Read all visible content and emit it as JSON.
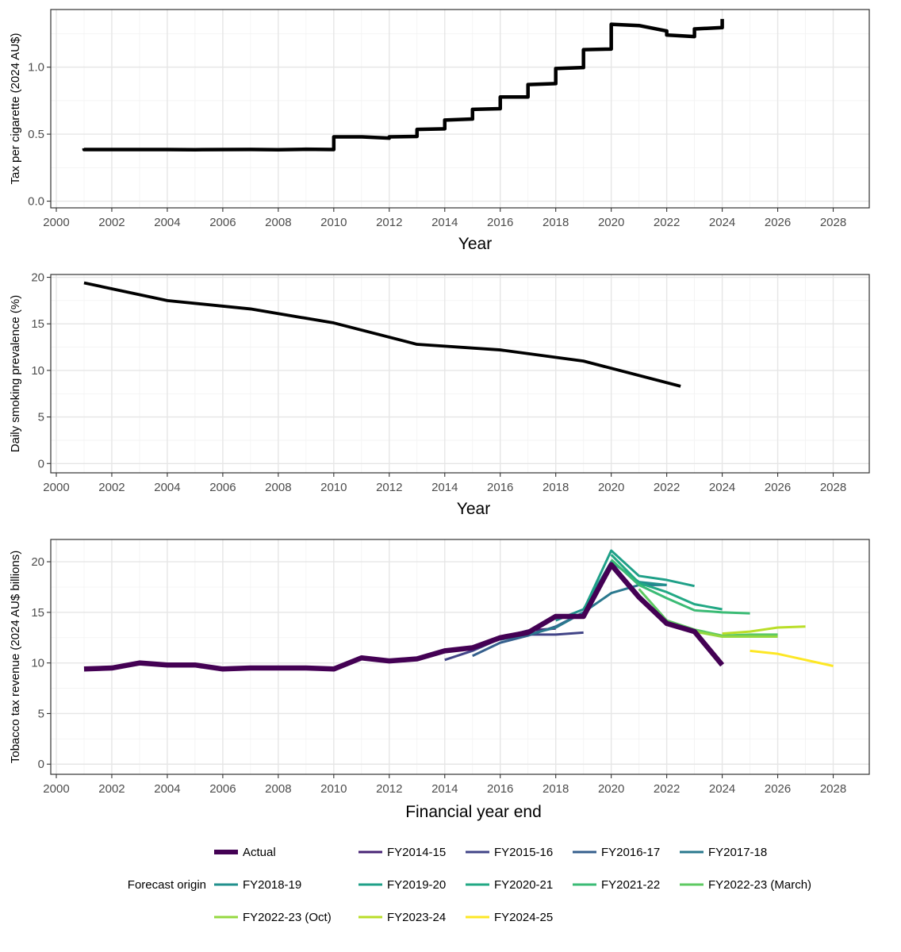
{
  "chart_data": [
    {
      "type": "line",
      "title": "",
      "xlabel": "Year",
      "ylabel": "Tax per cigarette (2024 AU$)",
      "xlim": [
        1999.8,
        2029.3
      ],
      "ylim": [
        -0.05,
        1.43
      ],
      "x_ticks": [
        2000,
        2002,
        2004,
        2006,
        2008,
        2010,
        2012,
        2014,
        2016,
        2018,
        2020,
        2022,
        2024,
        2026,
        2028
      ],
      "x_tick_labels": [
        "2000",
        "2002",
        "2004",
        "2006",
        "2008",
        "2010",
        "2012",
        "2014",
        "2016",
        "2018",
        "2020",
        "2022",
        "2024",
        "2026",
        "2028"
      ],
      "y_ticks": [
        0,
        0.5,
        1
      ],
      "y_tick_labels": [
        "0.0",
        "0.5",
        "1.0"
      ],
      "grid": true,
      "series": [
        {
          "name": "Tax per cigarette",
          "color": "#000000",
          "x": [
            2001.0,
            2001.0,
            2001.02,
            2003.0,
            2004.0,
            2005.0,
            2007.0,
            2008.0,
            2009.0,
            2010.0,
            2010.0,
            2011.0,
            2011.02,
            2012.0,
            2012.0,
            2013.0,
            2013.0,
            2014.0,
            2014.0,
            2015.0,
            2015.0,
            2016.0,
            2016.0,
            2017.0,
            2017.0,
            2018.0,
            2018.0,
            2019.0,
            2019.0,
            2020.0,
            2020.0,
            2021.0,
            2021.02,
            2022.0,
            2022.0,
            2023.0,
            2023.0,
            2024.0,
            2024.0
          ],
          "y": [
            0.395,
            0.385,
            0.385,
            0.385,
            0.385,
            0.384,
            0.386,
            0.384,
            0.387,
            0.385,
            0.48,
            0.48,
            0.48,
            0.47,
            0.48,
            0.483,
            0.535,
            0.54,
            0.605,
            0.613,
            0.685,
            0.69,
            0.777,
            0.777,
            0.87,
            0.877,
            0.99,
            0.997,
            1.13,
            1.135,
            1.32,
            1.31,
            1.31,
            1.27,
            1.24,
            1.228,
            1.285,
            1.295,
            1.36
          ]
        }
      ]
    },
    {
      "type": "line",
      "title": "",
      "xlabel": "Year",
      "ylabel": "Daily smoking prevalence (%)",
      "xlim": [
        1999.8,
        2029.3
      ],
      "ylim": [
        -1,
        20.3
      ],
      "x_ticks": [
        2000,
        2002,
        2004,
        2006,
        2008,
        2010,
        2012,
        2014,
        2016,
        2018,
        2020,
        2022,
        2024,
        2026,
        2028
      ],
      "x_tick_labels": [
        "2000",
        "2002",
        "2004",
        "2006",
        "2008",
        "2010",
        "2012",
        "2014",
        "2016",
        "2018",
        "2020",
        "2022",
        "2024",
        "2026",
        "2028"
      ],
      "y_ticks": [
        0,
        5,
        10,
        15,
        20
      ],
      "y_tick_labels": [
        "0",
        "5",
        "10",
        "15",
        "20"
      ],
      "grid": true,
      "series": [
        {
          "name": "Daily smoking prevalence",
          "color": "#000000",
          "x": [
            2001,
            2004,
            2007,
            2010,
            2013,
            2016,
            2019,
            2022.5
          ],
          "y": [
            19.4,
            17.5,
            16.6,
            15.1,
            12.8,
            12.2,
            11.0,
            8.3
          ]
        }
      ]
    },
    {
      "type": "line",
      "title": "",
      "xlabel": "Financial year end",
      "ylabel": "Tobacco tax revenue (2024 AU$ billions)",
      "xlim": [
        1999.8,
        2029.3
      ],
      "ylim": [
        -1,
        22.2
      ],
      "x_ticks": [
        2000,
        2002,
        2004,
        2006,
        2008,
        2010,
        2012,
        2014,
        2016,
        2018,
        2020,
        2022,
        2024,
        2026,
        2028
      ],
      "x_tick_labels": [
        "2000",
        "2002",
        "2004",
        "2006",
        "2008",
        "2010",
        "2012",
        "2014",
        "2016",
        "2018",
        "2020",
        "2022",
        "2024",
        "2026",
        "2028"
      ],
      "y_ticks": [
        0,
        5,
        10,
        15,
        20
      ],
      "y_tick_labels": [
        "0",
        "5",
        "10",
        "15",
        "20"
      ],
      "grid": true,
      "legend": {
        "title": "Forecast origin",
        "position": "bottom"
      },
      "series": [
        {
          "name": "FY2014-15",
          "color": "#482475",
          "x": [
            2016,
            2017,
            2018
          ],
          "y": [
            12.5,
            13.2,
            13.4
          ]
        },
        {
          "name": "FY2015-16",
          "color": "#414487",
          "x": [
            2014,
            2015,
            2016,
            2017,
            2018,
            2019
          ],
          "y": [
            10.3,
            11.2,
            12.4,
            12.8,
            12.8,
            13.0
          ]
        },
        {
          "name": "FY2016-17",
          "color": "#355F8D",
          "x": [
            2015,
            2016,
            2017,
            2018,
            2019
          ],
          "y": [
            10.7,
            12.0,
            12.7,
            13.6,
            15.0
          ]
        },
        {
          "name": "FY2017-18",
          "color": "#2A788E",
          "x": [
            2016,
            2017,
            2018,
            2019,
            2020,
            2021,
            2022
          ],
          "y": [
            12.3,
            12.8,
            13.5,
            15.0,
            16.9,
            17.7,
            17.7
          ]
        },
        {
          "name": "FY2018-19",
          "color": "#21908D",
          "x": [
            2018,
            2019,
            2020,
            2021,
            2022
          ],
          "y": [
            14.2,
            15.3,
            20.0,
            18.0,
            17.7
          ]
        },
        {
          "name": "FY2019-20",
          "color": "#1FA088",
          "x": [
            2019,
            2020,
            2021,
            2022,
            2023
          ],
          "y": [
            15.2,
            21.1,
            18.6,
            18.2,
            17.6
          ]
        },
        {
          "name": "FY2020-21",
          "color": "#22A884",
          "x": [
            2020,
            2021,
            2022,
            2023,
            2024
          ],
          "y": [
            20.7,
            17.9,
            17.0,
            15.8,
            15.3
          ]
        },
        {
          "name": "FY2021-22",
          "color": "#3BBB75",
          "x": [
            2020,
            2021,
            2022,
            2023,
            2024,
            2025
          ],
          "y": [
            20.2,
            17.7,
            16.4,
            15.2,
            15.0,
            14.9
          ]
        },
        {
          "name": "FY2022-23 (March)",
          "color": "#5EC962",
          "x": [
            2021,
            2022,
            2023,
            2024,
            2025,
            2026
          ],
          "y": [
            17.3,
            14.2,
            13.3,
            12.7,
            12.8,
            12.8
          ]
        },
        {
          "name": "FY2022-23 (Oct)",
          "color": "#95D840",
          "x": [
            2022,
            2023,
            2024,
            2025,
            2026
          ],
          "y": [
            14.0,
            13.1,
            12.6,
            12.6,
            12.6
          ]
        },
        {
          "name": "FY2023-24",
          "color": "#BADE28",
          "x": [
            2024,
            2025,
            2026,
            2027
          ],
          "y": [
            12.9,
            13.1,
            13.5,
            13.6
          ]
        },
        {
          "name": "FY2024-25",
          "color": "#FDE725",
          "x": [
            2025,
            2026,
            2027,
            2028
          ],
          "y": [
            11.2,
            10.9,
            10.3,
            9.7
          ]
        },
        {
          "name": "Actual",
          "color": "#440154",
          "x": [
            2001,
            2002,
            2003,
            2004,
            2005,
            2006,
            2007,
            2008,
            2009,
            2010,
            2011,
            2012,
            2013,
            2014,
            2015,
            2016,
            2017,
            2018,
            2019,
            2020,
            2021,
            2022,
            2023,
            2024
          ],
          "y": [
            9.4,
            9.5,
            10.0,
            9.8,
            9.8,
            9.4,
            9.5,
            9.5,
            9.5,
            9.4,
            10.5,
            10.2,
            10.4,
            11.2,
            11.5,
            12.5,
            13.0,
            14.6,
            14.6,
            19.7,
            16.5,
            13.9,
            13.1,
            9.8
          ]
        }
      ]
    }
  ],
  "legend": {
    "title": "Forecast origin",
    "rows": [
      [
        "Actual",
        "FY2014-15",
        "FY2015-16",
        "FY2016-17",
        "FY2017-18"
      ],
      [
        "FY2018-19",
        "FY2019-20",
        "FY2020-21",
        "FY2021-22",
        "FY2022-23 (March)"
      ],
      [
        "FY2022-23 (Oct)",
        "FY2023-24",
        "FY2024-25"
      ]
    ]
  }
}
